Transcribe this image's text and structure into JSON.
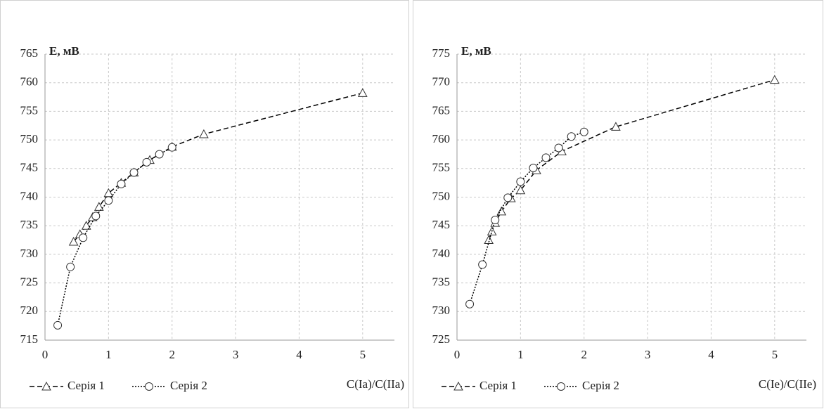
{
  "chart_data": [
    {
      "type": "line",
      "y_label": "E, мВ",
      "x_label": "C(Ia)/C(IIa)",
      "xlim": [
        0,
        5.5
      ],
      "xticks": [
        0,
        1,
        2,
        3,
        4,
        5
      ],
      "ylim": [
        715,
        765
      ],
      "yticks": [
        715,
        720,
        725,
        730,
        735,
        740,
        745,
        750,
        755,
        760,
        765
      ],
      "grid": true,
      "legend": "bottom-left",
      "series": [
        {
          "name": "Серія 1",
          "color": "#000000",
          "marker": "triangle",
          "dash": "dashed",
          "x": [
            0.45,
            0.55,
            0.65,
            0.75,
            0.85,
            1.0,
            1.2,
            1.4,
            1.65,
            2.0,
            2.5,
            5.0
          ],
          "values": [
            732.2,
            733.5,
            735.0,
            736.5,
            738.3,
            740.7,
            742.5,
            744.3,
            746.5,
            748.8,
            751.0,
            758.2
          ]
        },
        {
          "name": "Серія 2",
          "color": "#000000",
          "marker": "circle",
          "dash": "dotted",
          "x": [
            0.2,
            0.4,
            0.6,
            0.8,
            1.0,
            1.2,
            1.4,
            1.6,
            1.8,
            2.0
          ],
          "values": [
            717.6,
            727.8,
            732.9,
            736.7,
            739.4,
            742.3,
            744.3,
            746.1,
            747.5,
            748.7
          ]
        }
      ]
    },
    {
      "type": "line",
      "y_label": "E, мВ",
      "x_label": "C(Ie)/C(IIe)",
      "xlim": [
        0,
        5.5
      ],
      "xticks": [
        0,
        1,
        2,
        3,
        4,
        5
      ],
      "ylim": [
        725,
        775
      ],
      "yticks": [
        725,
        730,
        735,
        740,
        745,
        750,
        755,
        760,
        765,
        770,
        775
      ],
      "grid": true,
      "legend": "bottom-left",
      "series": [
        {
          "name": "Серія 1",
          "color": "#000000",
          "marker": "triangle",
          "dash": "dashed",
          "x": [
            0.5,
            0.55,
            0.6,
            0.7,
            0.85,
            1.0,
            1.25,
            1.65,
            2.5,
            5.0
          ],
          "values": [
            742.5,
            744.0,
            745.5,
            747.5,
            749.8,
            751.2,
            754.7,
            758.0,
            762.3,
            770.5
          ]
        },
        {
          "name": "Серія 2",
          "color": "#000000",
          "marker": "circle",
          "dash": "dotted",
          "x": [
            0.2,
            0.4,
            0.6,
            0.8,
            1.0,
            1.2,
            1.4,
            1.6,
            1.8,
            2.0
          ],
          "values": [
            731.3,
            738.2,
            746.0,
            749.9,
            752.7,
            755.1,
            756.9,
            758.6,
            760.6,
            761.4
          ]
        }
      ]
    }
  ]
}
